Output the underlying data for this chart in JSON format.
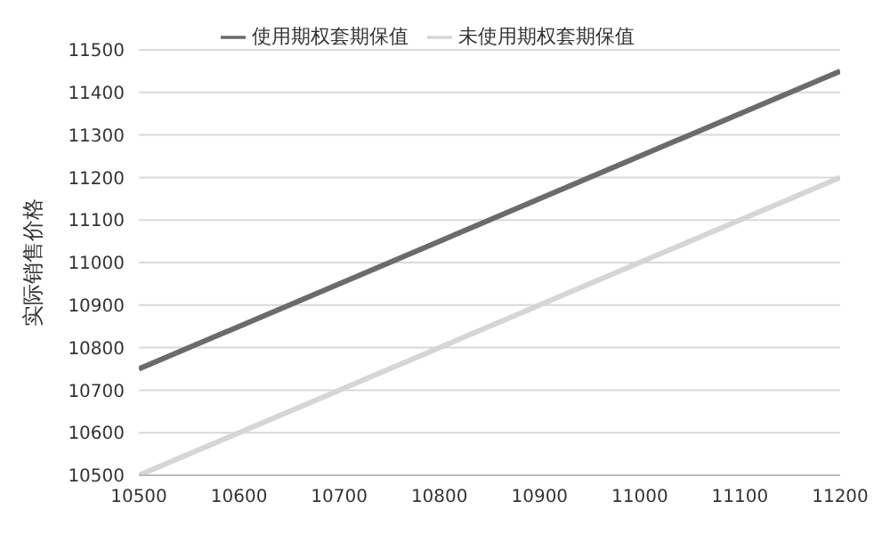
{
  "chart_data": {
    "type": "line",
    "ylabel": "实际销售价格",
    "x": [
      10500,
      11200
    ],
    "series": [
      {
        "name": "使用期权套期保值",
        "color": "#6b6b6b",
        "values": [
          10750,
          11450
        ]
      },
      {
        "name": "未使用期权套期保值",
        "color": "#d6d6d6",
        "values": [
          10500,
          11200
        ]
      }
    ],
    "xlim": [
      10500,
      11200
    ],
    "xticks": [
      10500,
      10600,
      10700,
      10800,
      10900,
      11000,
      11100,
      11200
    ],
    "ylim": [
      10500,
      11500
    ],
    "yticks": [
      10500,
      10600,
      10700,
      10800,
      10900,
      11000,
      11100,
      11200,
      11300,
      11400,
      11500
    ],
    "grid": "y",
    "legend": "top",
    "marker": "none",
    "line_style": "solid"
  }
}
